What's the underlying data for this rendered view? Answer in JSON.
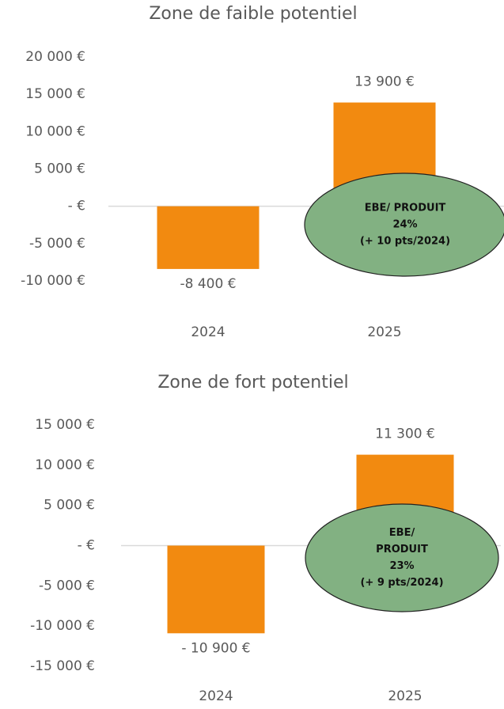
{
  "chart_data": [
    {
      "type": "bar",
      "title": "Zone de faible potentiel",
      "categories": [
        "2024",
        "2025"
      ],
      "values": [
        -8400,
        13900
      ],
      "value_labels": [
        "-8 400 €",
        "13 900 €"
      ],
      "color": "#f28a10",
      "ylim": [
        -10000,
        20000
      ],
      "yticks": [
        {
          "value": 20000,
          "label": "20 000 €"
        },
        {
          "value": 15000,
          "label": "15 000 €"
        },
        {
          "value": 10000,
          "label": "10 000 €"
        },
        {
          "value": 5000,
          "label": "5 000 €"
        },
        {
          "value": 0,
          "label": "-  €"
        },
        {
          "value": -5000,
          "label": "-5 000 €"
        },
        {
          "value": -10000,
          "label": "-10 000 €"
        }
      ],
      "annotation": [
        "EBE/ PRODUIT",
        "24%",
        "(+ 10 pts/2024)"
      ]
    },
    {
      "type": "bar",
      "title": "Zone de fort potentiel",
      "categories": [
        "2024",
        "2025"
      ],
      "values": [
        -10900,
        11300
      ],
      "value_labels": [
        "- 10 900 €",
        "11 300 €"
      ],
      "color": "#f28a10",
      "ylim": [
        -15000,
        15000
      ],
      "yticks": [
        {
          "value": 15000,
          "label": "15 000 €"
        },
        {
          "value": 10000,
          "label": "10 000 €"
        },
        {
          "value": 5000,
          "label": "5 000 €"
        },
        {
          "value": 0,
          "label": "-  €"
        },
        {
          "value": -5000,
          "label": "-5 000 €"
        },
        {
          "value": -10000,
          "label": "-10 000 €"
        },
        {
          "value": -15000,
          "label": "-15 000 €"
        }
      ],
      "annotation": [
        "EBE/",
        "PRODUIT",
        "23%",
        "(+ 9 pts/2024)"
      ]
    }
  ]
}
